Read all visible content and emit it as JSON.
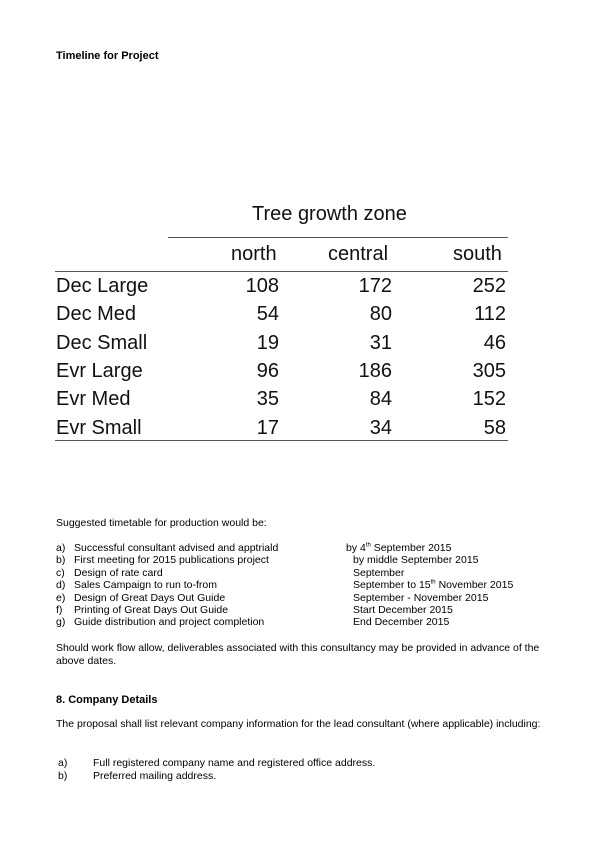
{
  "timeline_title": "Timeline for Project",
  "table": {
    "header": "Tree growth zone",
    "columns": [
      "north",
      "central",
      "south"
    ],
    "rows": [
      {
        "label": "Dec Large",
        "values": [
          "108",
          "172",
          "252"
        ]
      },
      {
        "label": "Dec Med",
        "values": [
          "54",
          "80",
          "112"
        ]
      },
      {
        "label": "Dec Small",
        "values": [
          "19",
          "31",
          "46"
        ]
      },
      {
        "label": "Evr Large",
        "values": [
          "96",
          "186",
          "305"
        ]
      },
      {
        "label": "Evr Med",
        "values": [
          "35",
          "84",
          "152"
        ]
      },
      {
        "label": "Evr Small",
        "values": [
          "17",
          "34",
          "58"
        ]
      }
    ]
  },
  "timetable": {
    "intro": "Suggested timetable for production would be:",
    "items": [
      {
        "letter": "a)",
        "task": "Successful consultant advised and apptriald",
        "date_pre": "by 4",
        "date_sup": "th",
        "date_post": " September 2015"
      },
      {
        "letter": "b)",
        "task": "First meeting for 2015 publications project",
        "date_pre": "by middle September 2015",
        "date_sup": "",
        "date_post": ""
      },
      {
        "letter": "c)",
        "task": "Design of rate card",
        "date_pre": "September",
        "date_sup": "",
        "date_post": ""
      },
      {
        "letter": "d)",
        "task": "Sales Campaign to run to-from",
        "date_pre": "September to 15",
        "date_sup": "th",
        "date_post": " November  2015"
      },
      {
        "letter": "e)",
        "task": "Design of Great Days Out Guide",
        "date_pre": "September - November 2015",
        "date_sup": "",
        "date_post": ""
      },
      {
        "letter": "f)",
        "task": "Printing of Great Days Out Guide",
        "date_pre": "Start December 2015",
        "date_sup": "",
        "date_post": ""
      },
      {
        "letter": "g)",
        "task": "Guide distribution and project completion",
        "date_pre": "End December 2015",
        "date_sup": "",
        "date_post": ""
      }
    ],
    "note": "Should work flow allow, deliverables associated with this consultancy may be provided in advance of the above dates."
  },
  "company": {
    "heading": "8. Company Details",
    "intro": "The proposal shall list relevant company information for the lead consultant (where applicable) including:",
    "items": [
      {
        "letter": "a)",
        "text": "Full registered company name and registered office address."
      },
      {
        "letter": "b)",
        "text": "Preferred mailing address."
      }
    ]
  }
}
